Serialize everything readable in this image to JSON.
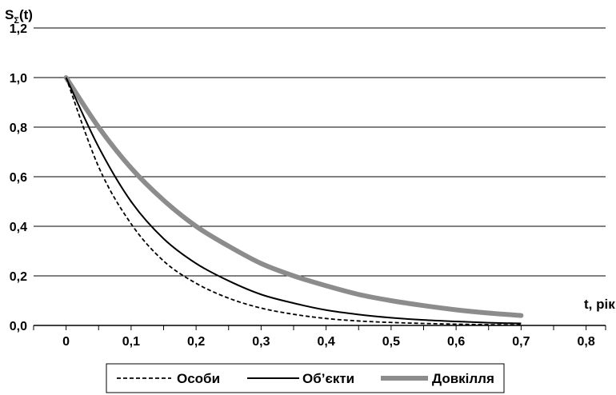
{
  "chart_data": {
    "type": "line",
    "ylabel_main": "S",
    "ylabel_sub": "Σ",
    "ylabel_suffix": "(t)",
    "xlabel": "t, рік",
    "xlim": [
      -0.05,
      0.83
    ],
    "ylim": [
      0,
      1.2
    ],
    "grid": "horizontal",
    "legend_position": "bottom",
    "x_ticks": [
      "0",
      "0,1",
      "0,2",
      "0,3",
      "0,4",
      "0,5",
      "0,6",
      "0,7",
      "0,8"
    ],
    "y_ticks": [
      "0,0",
      "0,2",
      "0,4",
      "0,6",
      "0,8",
      "1,0",
      "1,2"
    ],
    "x": [
      0,
      0.05,
      0.1,
      0.15,
      0.2,
      0.25,
      0.3,
      0.35,
      0.4,
      0.45,
      0.5,
      0.55,
      0.6,
      0.65,
      0.7
    ],
    "series": [
      {
        "name": "Особи",
        "style": "dashed",
        "color": "#000000",
        "values": [
          1.0,
          0.64,
          0.41,
          0.26,
          0.17,
          0.11,
          0.07,
          0.045,
          0.028,
          0.018,
          0.012,
          0.008,
          0.005,
          0.003,
          0.002
        ]
      },
      {
        "name": "Об’єкти",
        "style": "solid",
        "color": "#000000",
        "values": [
          1.0,
          0.72,
          0.5,
          0.35,
          0.25,
          0.18,
          0.125,
          0.09,
          0.062,
          0.044,
          0.031,
          0.022,
          0.016,
          0.011,
          0.008
        ]
      },
      {
        "name": "Довкілля",
        "style": "thick",
        "color": "#8c8c8c",
        "values": [
          1.0,
          0.8,
          0.635,
          0.505,
          0.4,
          0.32,
          0.25,
          0.2,
          0.16,
          0.125,
          0.1,
          0.08,
          0.063,
          0.05,
          0.04
        ]
      }
    ]
  }
}
